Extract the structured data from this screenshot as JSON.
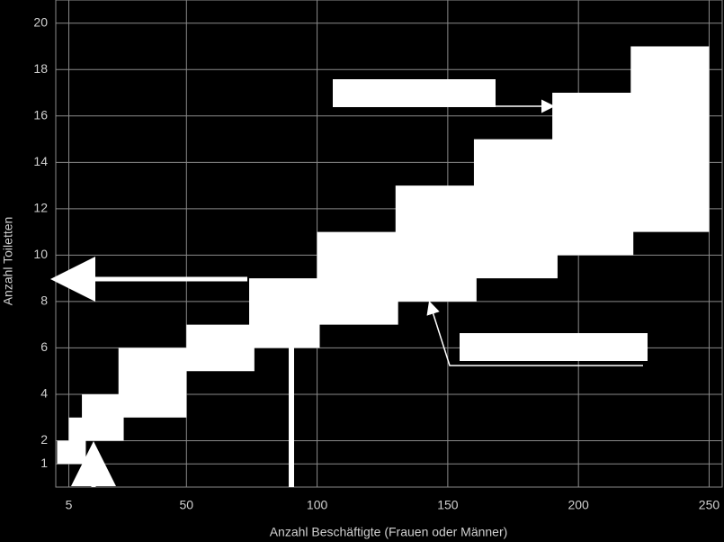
{
  "chart_data": {
    "type": "step-band",
    "x_label": "Anzahl Beschäftigte (Frauen oder Männer)",
    "y_label": "Anzahl Toiletten",
    "upper": {
      "x": [
        0.5,
        5,
        10,
        24,
        50,
        74,
        100,
        130,
        160,
        190,
        220,
        250
      ],
      "values": [
        2,
        3,
        4,
        6,
        7,
        9,
        11,
        13,
        15,
        17,
        19
      ]
    },
    "lower": {
      "x": [
        0.5,
        11.5,
        26,
        50,
        76,
        101,
        131,
        161,
        192,
        221,
        250
      ],
      "values": [
        1,
        2,
        3,
        5,
        6,
        7,
        8,
        9,
        10,
        11
      ]
    },
    "color": "#ffffff",
    "xlim": [
      0,
      255
    ],
    "ylim": [
      0,
      21
    ],
    "xticks": [
      5,
      50,
      100,
      150,
      200,
      250
    ],
    "yticks": [
      1,
      2,
      4,
      6,
      8,
      10,
      12,
      14,
      16,
      18,
      20
    ],
    "grid": true
  }
}
